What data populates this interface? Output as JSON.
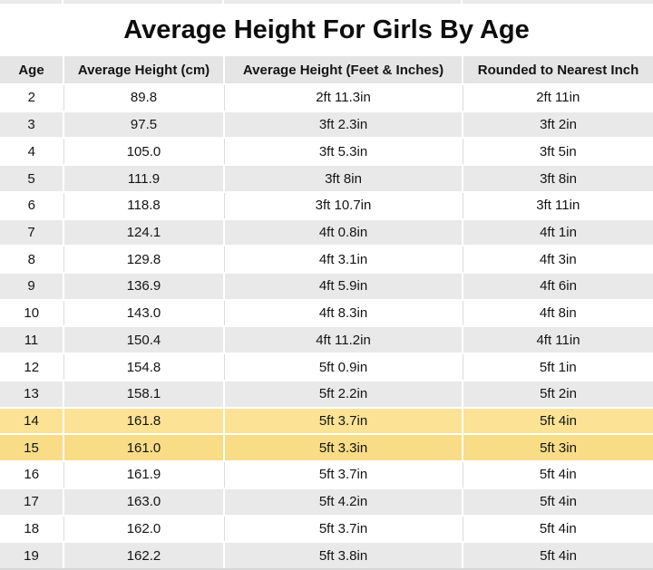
{
  "page": {
    "title": "Average Height For Girls By Age"
  },
  "colors": {
    "header_bg": "#e5e5e5",
    "row_alt_bg": "#e9e9e9",
    "highlight_row_14": "#fbe294",
    "highlight_row_15": "#f8dc86",
    "text": "#141414"
  },
  "chart_data": {
    "type": "table",
    "title": "Average Height For Girls By Age",
    "columns": [
      "Age",
      "Average Height (cm)",
      "Average Height (Feet & Inches)",
      "Rounded to Nearest Inch"
    ],
    "rows": [
      [
        "2",
        "89.8",
        "2ft 11.3in",
        "2ft 11in"
      ],
      [
        "3",
        "97.5",
        "3ft 2.3in",
        "3ft 2in"
      ],
      [
        "4",
        "105.0",
        "3ft 5.3in",
        "3ft 5in"
      ],
      [
        "5",
        "111.9",
        "3ft 8in",
        "3ft 8in"
      ],
      [
        "6",
        "118.8",
        "3ft 10.7in",
        "3ft 11in"
      ],
      [
        "7",
        "124.1",
        "4ft 0.8in",
        "4ft 1in"
      ],
      [
        "8",
        "129.8",
        "4ft 3.1in",
        "4ft 3in"
      ],
      [
        "9",
        "136.9",
        "4ft 5.9in",
        "4ft 6in"
      ],
      [
        "10",
        "143.0",
        "4ft 8.3in",
        "4ft 8in"
      ],
      [
        "11",
        "150.4",
        "4ft 11.2in",
        "4ft 11in"
      ],
      [
        "12",
        "154.8",
        "5ft 0.9in",
        "5ft 1in"
      ],
      [
        "13",
        "158.1",
        "5ft 2.2in",
        "5ft 2in"
      ],
      [
        "14",
        "161.8",
        "5ft 3.7in",
        "5ft 4in"
      ],
      [
        "15",
        "161.0",
        "5ft 3.3in",
        "5ft 3in"
      ],
      [
        "16",
        "161.9",
        "5ft 3.7in",
        "5ft 4in"
      ],
      [
        "17",
        "163.0",
        "5ft 4.2in",
        "5ft 4in"
      ],
      [
        "18",
        "162.0",
        "5ft 3.7in",
        "5ft 4in"
      ],
      [
        "19",
        "162.2",
        "5ft 3.8in",
        "5ft 4in"
      ]
    ],
    "highlighted_ages": [
      "14",
      "15"
    ],
    "layout": {
      "zebra_striping": true,
      "header_row": true
    }
  }
}
